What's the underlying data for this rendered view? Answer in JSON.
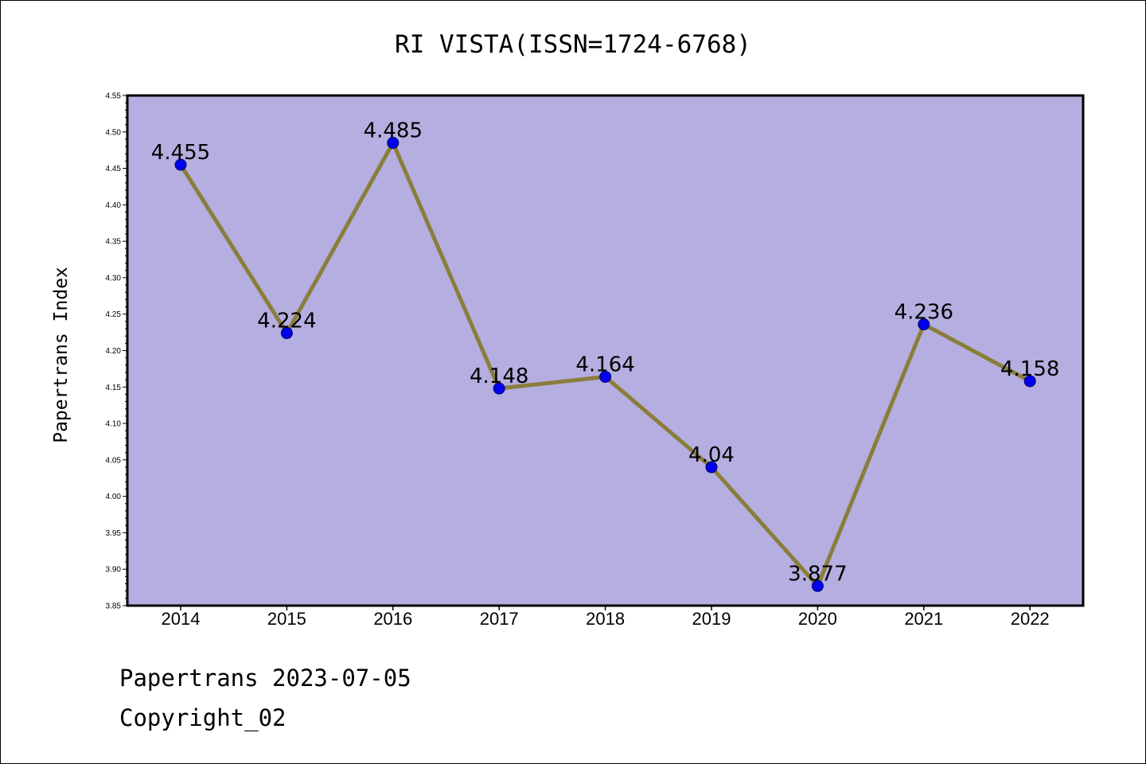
{
  "chart_data": {
    "type": "line",
    "title": "RI VISTA(ISSN=1724-6768)",
    "xlabel": "",
    "ylabel": "Papertrans Index",
    "categories": [
      "2014",
      "2015",
      "2016",
      "2017",
      "2018",
      "2019",
      "2020",
      "2021",
      "2022"
    ],
    "values": [
      4.455,
      4.224,
      4.485,
      4.148,
      4.164,
      4.04,
      3.877,
      4.236,
      4.158
    ],
    "data_labels": [
      "4.455",
      "4.224",
      "4.485",
      "4.148",
      "4.164",
      "4.04",
      "3.877",
      "4.236",
      "4.158"
    ],
    "ylim": [
      3.85,
      4.55
    ],
    "yticks": [
      "3.85",
      "3.90",
      "3.95",
      "4.00",
      "4.05",
      "4.10",
      "4.15",
      "4.20",
      "4.25",
      "4.30",
      "4.35",
      "4.40",
      "4.45",
      "4.50",
      "4.55"
    ],
    "grid": false,
    "legend": "none",
    "colors": {
      "plot_background": "#b5aee0",
      "line": "#8b7d3a",
      "marker_fill": "#0000ee",
      "marker_edge": "#000066"
    }
  },
  "footer": {
    "line1": "Papertrans 2023-07-05",
    "line2": "Copyright_02"
  }
}
